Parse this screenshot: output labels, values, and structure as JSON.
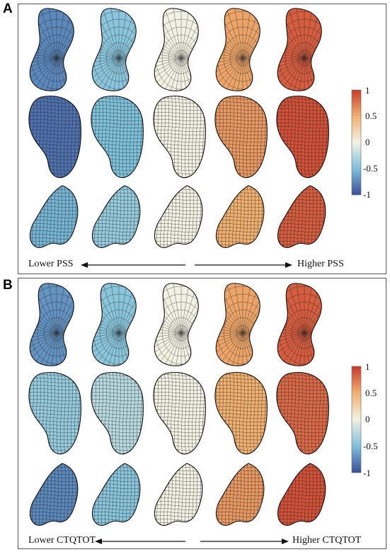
{
  "panels": [
    {
      "letter": "A",
      "left_caption": "Lower PSS",
      "right_caption": "Higher PSS",
      "colorbar_ticks": [
        "1",
        "0.5",
        "0",
        "-0.5",
        "-1"
      ],
      "row_values": [
        [
          -0.75,
          -0.45,
          0.0,
          0.55,
          0.85
        ],
        [
          -0.85,
          -0.5,
          0.0,
          0.6,
          0.9
        ],
        [
          -0.55,
          -0.4,
          0.0,
          0.5,
          0.85
        ]
      ]
    },
    {
      "letter": "B",
      "left_caption": "Lower CTQTOT",
      "right_caption": "Higher CTQTOT",
      "colorbar_ticks": [
        "1",
        "0.5",
        "0",
        "-0.5",
        "-1"
      ],
      "row_values": [
        [
          -0.7,
          -0.45,
          0.0,
          0.55,
          0.85
        ],
        [
          -0.4,
          -0.25,
          0.0,
          0.5,
          0.8
        ],
        [
          -0.75,
          -0.45,
          0.0,
          0.6,
          0.9
        ]
      ]
    }
  ],
  "colors": {
    "neg": "#3b4f9a",
    "mid": "#f2f2e4",
    "pos": "#c93a2b",
    "neg_half": "#7fc0db",
    "pos_half": "#f0b070"
  }
}
